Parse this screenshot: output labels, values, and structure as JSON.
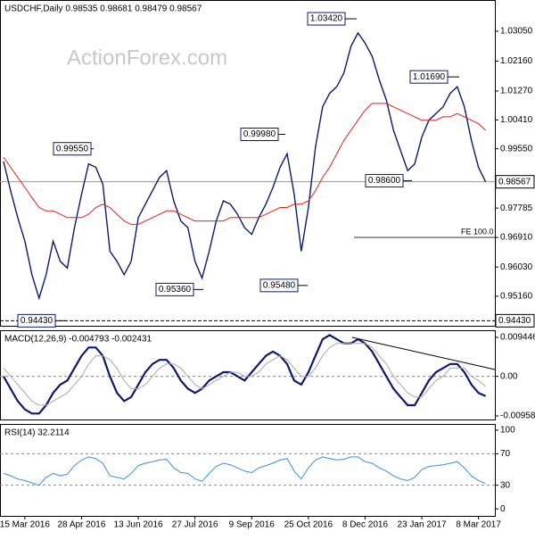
{
  "chart_data": [
    {
      "type": "line",
      "title": "USDCHF,Daily  0.98535 0.98681 0.98479 0.98567",
      "watermark": "ActionForex.com",
      "series": [
        {
          "name": "Close",
          "color": "#0b1a6e",
          "values": [
            0.9917,
            0.983,
            0.975,
            0.968,
            0.958,
            0.951,
            0.958,
            0.968,
            0.962,
            0.96,
            0.972,
            0.982,
            0.991,
            0.99,
            0.985,
            0.965,
            0.962,
            0.958,
            0.962,
            0.975,
            0.979,
            0.983,
            0.987,
            0.989,
            0.98,
            0.974,
            0.972,
            0.962,
            0.957,
            0.965,
            0.974,
            0.98,
            0.979,
            0.976,
            0.972,
            0.97,
            0.975,
            0.979,
            0.984,
            0.99,
            0.994,
            0.982,
            0.965,
            0.978,
            0.996,
            1.008,
            1.012,
            1.014,
            1.018,
            1.026,
            1.03,
            1.027,
            1.023,
            1.016,
            1.01,
            1.001,
            0.995,
            0.989,
            0.991,
            0.999,
            1.004,
            1.006,
            1.008,
            1.012,
            1.014,
            1.008,
            0.998,
            0.99,
            0.98567
          ]
        },
        {
          "name": "MA",
          "color": "#e0201b",
          "values": [
            0.993,
            0.99,
            0.987,
            0.984,
            0.981,
            0.978,
            0.977,
            0.977,
            0.976,
            0.975,
            0.975,
            0.975,
            0.976,
            0.978,
            0.979,
            0.978,
            0.976,
            0.974,
            0.973,
            0.973,
            0.974,
            0.975,
            0.976,
            0.977,
            0.977,
            0.976,
            0.975,
            0.974,
            0.974,
            0.974,
            0.974,
            0.974,
            0.975,
            0.975,
            0.975,
            0.975,
            0.975,
            0.976,
            0.977,
            0.978,
            0.978,
            0.979,
            0.979,
            0.98,
            0.983,
            0.987,
            0.99,
            0.994,
            0.998,
            1.001,
            1.004,
            1.007,
            1.009,
            1.009,
            1.009,
            1.008,
            1.007,
            1.006,
            1.005,
            1.004,
            1.004,
            1.004,
            1.005,
            1.005,
            1.006,
            1.005,
            1.004,
            1.003,
            1.001
          ]
        }
      ],
      "ylim": [
        0.9428,
        1.0398
      ],
      "yticks": [
        {
          "value": 1.0305,
          "label": "1.03050"
        },
        {
          "value": 1.0216,
          "label": "1.02160"
        },
        {
          "value": 1.0127,
          "label": "1.01270"
        },
        {
          "value": 1.0041,
          "label": "1.00410"
        },
        {
          "value": 0.9955,
          "label": "0.99550"
        },
        {
          "value": 0.97785,
          "label": "0.97785"
        },
        {
          "value": 0.9691,
          "label": "0.96910"
        },
        {
          "value": 0.9603,
          "label": "0.96030"
        },
        {
          "value": 0.9516,
          "label": "0.95160"
        }
      ],
      "annotations": [
        {
          "value": 1.0342,
          "label": "1.03420"
        },
        {
          "value": 1.0169,
          "label": "1.01690"
        },
        {
          "value": 0.9955,
          "label": "0.99550"
        },
        {
          "value": 0.9998,
          "label": "0.99980"
        },
        {
          "value": 0.986,
          "label": "0.98600"
        },
        {
          "value": 0.9536,
          "label": "0.95360"
        },
        {
          "value": 0.9548,
          "label": "0.95480"
        },
        {
          "value": 0.9443,
          "label": "0.94430"
        }
      ],
      "price_marker": {
        "value": 0.98567,
        "label": "0.98567"
      },
      "support": {
        "value": 0.9443,
        "label": "0.94430"
      },
      "fe_label": "FE 100.0",
      "fe_price": 0.9691
    },
    {
      "type": "line",
      "title": "MACD(12,26,9) -0.004793 -0.002431",
      "series": [
        {
          "name": "MACD",
          "color": "#0b1a6e",
          "values": [
            0.0,
            -0.003,
            -0.006,
            -0.008,
            -0.009,
            -0.009,
            -0.007,
            -0.004,
            -0.002,
            -0.001,
            0.002,
            0.005,
            0.007,
            0.007,
            0.005,
            0.0,
            -0.004,
            -0.006,
            -0.005,
            -0.002,
            0.001,
            0.003,
            0.004,
            0.004,
            0.002,
            -0.001,
            -0.003,
            -0.004,
            -0.003,
            -0.001,
            0.0,
            0.001,
            0.001,
            0.0,
            -0.001,
            0.001,
            0.003,
            0.005,
            0.006,
            0.005,
            0.003,
            -0.001,
            -0.002,
            0.001,
            0.005,
            0.009,
            0.01,
            0.009,
            0.008,
            0.008,
            0.009,
            0.008,
            0.006,
            0.003,
            0.0,
            -0.003,
            -0.005,
            -0.007,
            -0.007,
            -0.004,
            -0.001,
            0.001,
            0.002,
            0.003,
            0.003,
            0.001,
            -0.002,
            -0.004,
            -0.004793
          ]
        },
        {
          "name": "Signal",
          "color": "#a8a8a8",
          "values": [
            0.002,
            0.0,
            -0.002,
            -0.004,
            -0.006,
            -0.007,
            -0.007,
            -0.006,
            -0.005,
            -0.004,
            -0.002,
            0.0,
            0.003,
            0.005,
            0.005,
            0.004,
            0.002,
            -0.001,
            -0.003,
            -0.003,
            -0.002,
            0.0,
            0.002,
            0.003,
            0.003,
            0.002,
            0.0,
            -0.002,
            -0.003,
            -0.002,
            -0.001,
            0.0,
            0.001,
            0.001,
            0.0,
            0.0,
            0.001,
            0.003,
            0.004,
            0.005,
            0.004,
            0.002,
            0.0,
            0.0,
            0.002,
            0.005,
            0.007,
            0.008,
            0.008,
            0.008,
            0.008,
            0.008,
            0.007,
            0.005,
            0.003,
            0.0,
            -0.002,
            -0.004,
            -0.005,
            -0.005,
            -0.003,
            -0.001,
            0.0,
            0.002,
            0.002,
            0.002,
            0.0,
            -0.001,
            -0.002431
          ]
        }
      ],
      "ylim": [
        -0.010453,
        0.011176
      ],
      "yticks": [
        0.009446,
        {
          "value": 0,
          "label": "0.00"
        },
        -0.009588
      ],
      "dashed_levels": [
        0
      ]
    },
    {
      "type": "line",
      "title": "RSI(14) 32.2114",
      "categories": [
        null,
        null,
        null,
        "15 Mar 2016",
        null,
        null,
        null,
        null,
        null,
        null,
        null,
        "28 Apr 2016",
        null,
        null,
        null,
        null,
        null,
        null,
        null,
        "13 Jun 2016",
        null,
        null,
        null,
        null,
        null,
        null,
        null,
        "27 Jul 2016",
        null,
        null,
        null,
        null,
        null,
        null,
        null,
        "9 Sep 2016",
        null,
        null,
        null,
        null,
        null,
        null,
        null,
        "25 Oct 2016",
        null,
        null,
        null,
        null,
        null,
        null,
        null,
        "8 Dec 2016",
        null,
        null,
        null,
        null,
        null,
        null,
        null,
        "23 Jan 2017",
        null,
        null,
        null,
        null,
        null,
        null,
        null,
        "8 Mar 2017",
        null
      ],
      "series": [
        {
          "name": "RSI",
          "color": "#3a8fe0",
          "values": [
            45,
            42,
            38,
            36,
            33,
            30,
            40,
            45,
            42,
            44,
            55,
            62,
            66,
            64,
            58,
            42,
            40,
            38,
            45,
            55,
            58,
            60,
            62,
            63,
            52,
            46,
            45,
            38,
            35,
            45,
            54,
            58,
            56,
            52,
            48,
            46,
            52,
            55,
            58,
            62,
            64,
            48,
            38,
            52,
            62,
            66,
            64,
            62,
            63,
            66,
            66,
            60,
            58,
            52,
            48,
            42,
            38,
            36,
            40,
            50,
            54,
            55,
            56,
            58,
            60,
            52,
            42,
            36,
            32.2114
          ]
        }
      ],
      "ylim": [
        -8.9,
        107.8
      ],
      "yticks": [
        100,
        70,
        30,
        0
      ],
      "dashed_levels": [
        70,
        30
      ]
    }
  ]
}
